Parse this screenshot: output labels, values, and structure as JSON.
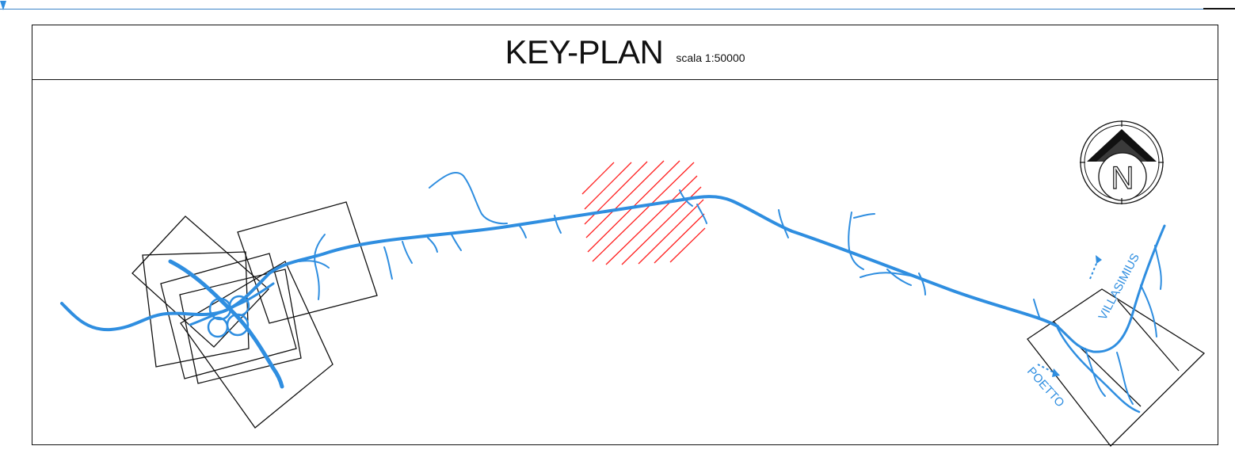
{
  "title": {
    "main": "KEY-PLAN",
    "scale": "scala 1:50000"
  },
  "north_arrow": {
    "letter": "N"
  },
  "direction_labels": [
    {
      "text": "VILLASIMIUS"
    },
    {
      "text": "POETTO"
    }
  ],
  "colors": {
    "road": "#2f8ee0",
    "frame": "#111111",
    "hatch": "#ff2020",
    "sheet_rule": "#3a84c8"
  },
  "icons": [
    "north-arrow-icon",
    "direction-arrow-icon"
  ]
}
